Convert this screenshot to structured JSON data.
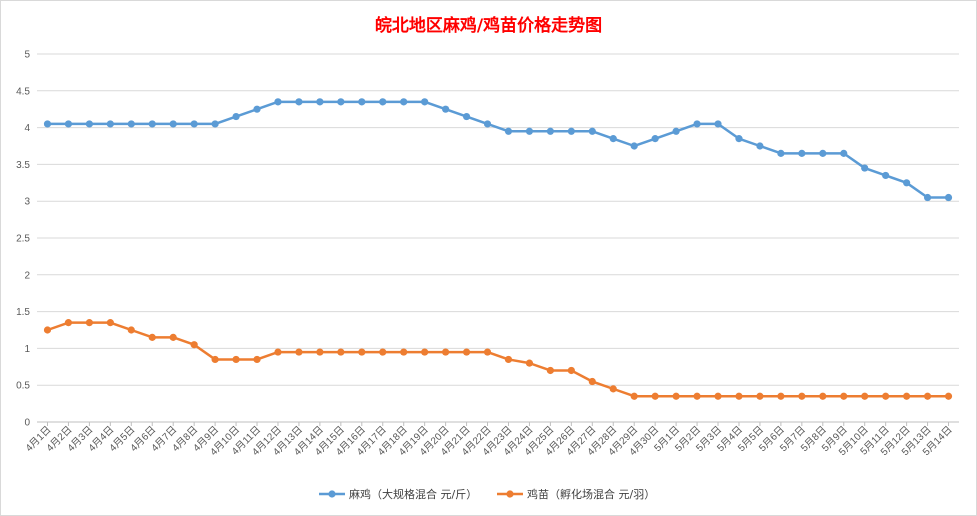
{
  "chart_data": {
    "type": "line",
    "title": "皖北地区麻鸡/鸡苗价格走势图",
    "xlabel": "",
    "ylabel": "",
    "ylim": [
      0,
      5
    ],
    "yticks": [
      "0",
      "0.5",
      "1",
      "1.5",
      "2",
      "2.5",
      "3",
      "3.5",
      "4",
      "4.5",
      "5"
    ],
    "grid": "horizontal",
    "legend_position": "bottom",
    "categories": [
      "4月1日",
      "4月2日",
      "4月3日",
      "4月4日",
      "4月5日",
      "4月6日",
      "4月7日",
      "4月8日",
      "4月9日",
      "4月10日",
      "4月11日",
      "4月12日",
      "4月13日",
      "4月14日",
      "4月15日",
      "4月16日",
      "4月17日",
      "4月18日",
      "4月19日",
      "4月20日",
      "4月21日",
      "4月22日",
      "4月23日",
      "4月24日",
      "4月25日",
      "4月26日",
      "4月27日",
      "4月28日",
      "4月29日",
      "4月30日",
      "5月1日",
      "5月2日",
      "5月3日",
      "5月4日",
      "5月5日",
      "5月6日",
      "5月7日",
      "5月8日",
      "5月9日",
      "5月10日",
      "5月11日",
      "5月12日",
      "5月13日",
      "5月14日"
    ],
    "series": [
      {
        "name": "麻鸡（大规格混合 元/斤）",
        "color": "#5b9bd5",
        "values": [
          4.05,
          4.05,
          4.05,
          4.05,
          4.05,
          4.05,
          4.05,
          4.05,
          4.05,
          4.15,
          4.25,
          4.35,
          4.35,
          4.35,
          4.35,
          4.35,
          4.35,
          4.35,
          4.35,
          4.25,
          4.15,
          4.05,
          3.95,
          3.95,
          3.95,
          3.95,
          3.95,
          3.85,
          3.75,
          3.85,
          3.95,
          4.05,
          4.05,
          3.85,
          3.75,
          3.65,
          3.65,
          3.65,
          3.65,
          3.45,
          3.35,
          3.25,
          3.05,
          3.05
        ]
      },
      {
        "name": "鸡苗（孵化场混合 元/羽）",
        "color": "#ed7d31",
        "values": [
          1.25,
          1.35,
          1.35,
          1.35,
          1.25,
          1.15,
          1.15,
          1.05,
          0.85,
          0.85,
          0.85,
          0.95,
          0.95,
          0.95,
          0.95,
          0.95,
          0.95,
          0.95,
          0.95,
          0.95,
          0.95,
          0.95,
          0.85,
          0.8,
          0.7,
          0.7,
          0.55,
          0.45,
          0.35,
          0.35,
          0.35,
          0.35,
          0.35,
          0.35,
          0.35,
          0.35,
          0.35,
          0.35,
          0.35,
          0.35,
          0.35,
          0.35,
          0.35,
          0.35
        ]
      }
    ]
  }
}
